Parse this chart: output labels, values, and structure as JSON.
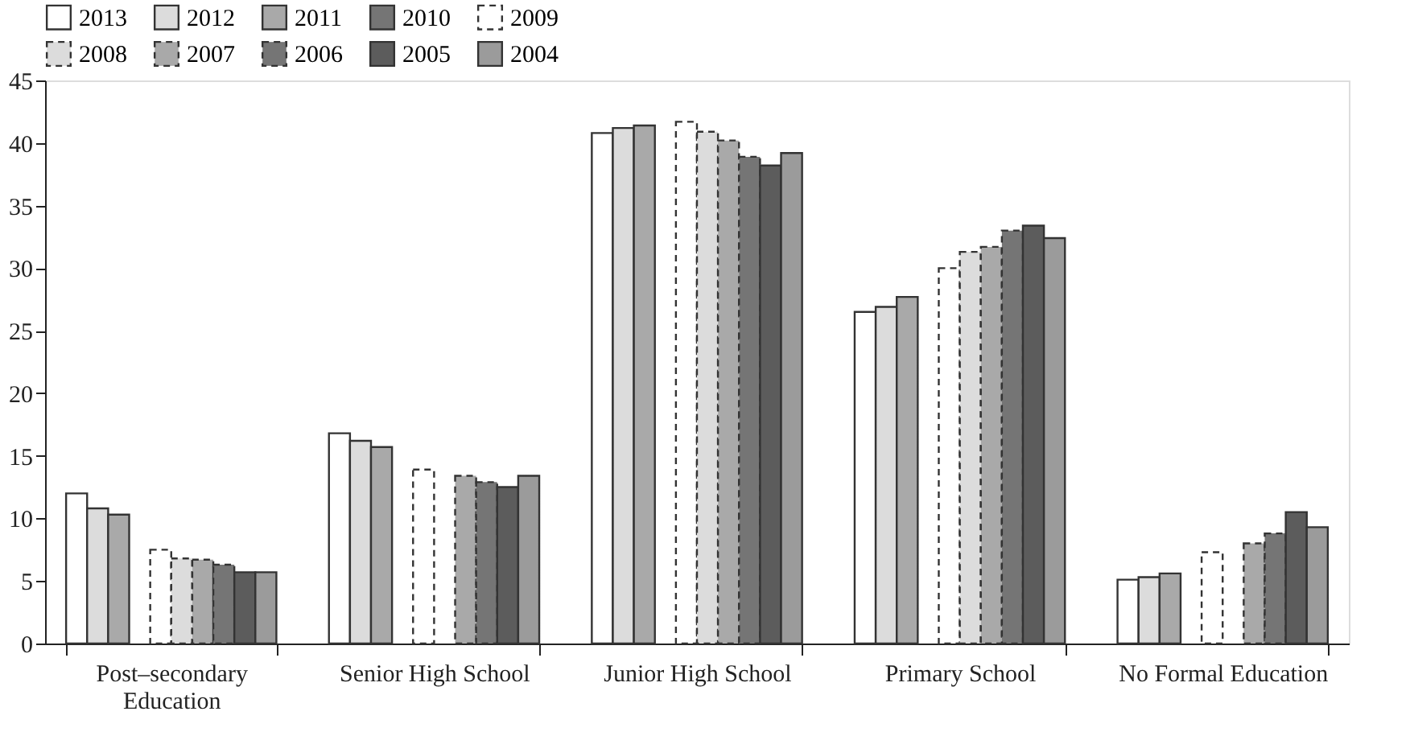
{
  "chart_data": {
    "type": "bar",
    "categories": [
      "Post–secondary\nEducation",
      "Senior High  School",
      "Junior High School",
      "Primary School",
      "No Formal Education"
    ],
    "series": [
      {
        "name": "2013",
        "color": "#ffffff",
        "line_style": "solid",
        "values": [
          12.0,
          16.8,
          40.8,
          26.5,
          5.1
        ]
      },
      {
        "name": "2012",
        "color": "#dcdcdc",
        "line_style": "solid",
        "values": [
          10.8,
          16.2,
          41.2,
          26.9,
          5.3
        ]
      },
      {
        "name": "2011",
        "color": "#a9a9a9",
        "line_style": "solid",
        "values": [
          10.3,
          15.7,
          41.4,
          27.7,
          5.6
        ]
      },
      {
        "name": "2010",
        "color": "#757575",
        "line_style": "solid",
        "values": [
          null,
          null,
          null,
          null,
          null
        ]
      },
      {
        "name": "2009",
        "color": "#ffffff",
        "line_style": "dashed",
        "values": [
          7.5,
          13.9,
          41.7,
          30.0,
          7.3
        ]
      },
      {
        "name": "2008",
        "color": "#dcdcdc",
        "line_style": "dashed",
        "values": [
          6.8,
          null,
          40.9,
          31.3,
          null
        ]
      },
      {
        "name": "2007",
        "color": "#a9a9a9",
        "line_style": "dashed",
        "values": [
          6.7,
          13.4,
          40.2,
          31.7,
          8.0
        ]
      },
      {
        "name": "2006",
        "color": "#757575",
        "line_style": "dashed",
        "values": [
          6.3,
          12.9,
          38.9,
          33.0,
          8.8
        ]
      },
      {
        "name": "2005",
        "color": "#5c5c5c",
        "line_style": "solid",
        "values": [
          5.7,
          12.5,
          38.2,
          33.4,
          10.5
        ]
      },
      {
        "name": "2004",
        "color": "#9b9b9b",
        "line_style": "solid",
        "values": [
          5.7,
          13.4,
          39.2,
          32.4,
          9.3
        ]
      }
    ],
    "ylim": [
      0,
      45
    ],
    "yticks": [
      0,
      5,
      10,
      15,
      20,
      25,
      30,
      35,
      40,
      45
    ],
    "grid": false,
    "legend": "top left"
  }
}
